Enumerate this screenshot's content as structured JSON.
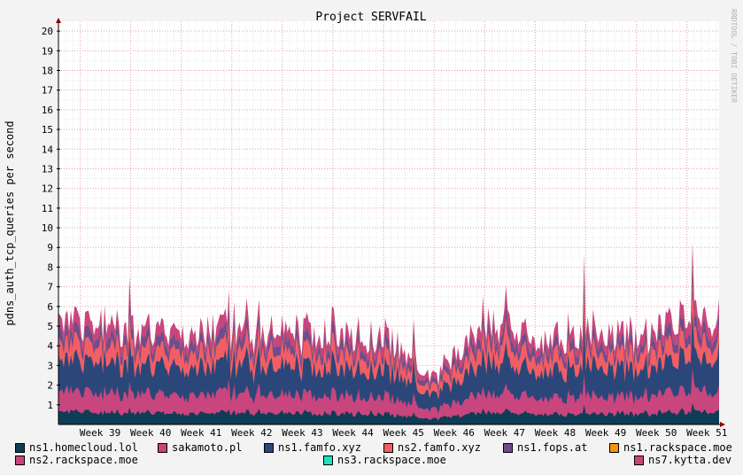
{
  "chart_data": {
    "type": "area",
    "stacked": true,
    "title": "Project SERVFAIL",
    "ylabel": "pdns_auth_tcp_queries per second",
    "watermark": "RRDTOOL / TOBI OETIKER",
    "ylim": [
      0,
      20.5
    ],
    "y_ticks": [
      "1",
      "2",
      "3",
      "4",
      "5",
      "6",
      "7",
      "8",
      "9",
      "10",
      "11",
      "12",
      "13",
      "14",
      "15",
      "16",
      "17",
      "18",
      "19",
      "20"
    ],
    "x_ticks": [
      "Week 39",
      "Week 40",
      "Week 41",
      "Week 42",
      "Week 43",
      "Week 44",
      "Week 45",
      "Week 46",
      "Week 47",
      "Week 48",
      "Week 49",
      "Week 50",
      "Week 51"
    ],
    "grid": true,
    "legend_position": "bottom",
    "approx_total_by_week": {
      "Week 39": 5.5,
      "Week 40": 4.8,
      "Week 41": 4.5,
      "Week 42": 5.0,
      "Week 43": 4.8,
      "Week 44": 4.7,
      "Week 45": 4.6,
      "Week 46": 2.3,
      "Week 47": 5.5,
      "Week 48": 4.3,
      "Week 49": 4.8,
      "Week 50": 4.4,
      "Week 51": 5.5
    },
    "series": [
      {
        "name": "ns1.homecloud.lol",
        "color": "#0f3d56",
        "approx_mean": 0.55
      },
      {
        "name": "sakamoto.pl",
        "color": "#c9457d",
        "approx_mean": 0.9
      },
      {
        "name": "ns1.famfo.xyz",
        "color": "#2b4779",
        "approx_mean": 1.4
      },
      {
        "name": "ns2.famfo.xyz",
        "color": "#f25e64",
        "approx_mean": 0.75
      },
      {
        "name": "ns1.fops.at",
        "color": "#6f4c8e",
        "approx_mean": 0.45
      },
      {
        "name": "ns1.rackspace.moe",
        "color": "#f0950e",
        "approx_mean": 0.0
      },
      {
        "name": "ns2.rackspace.moe",
        "color": "#c9457d",
        "approx_mean": 0.0
      },
      {
        "name": "ns3.rackspace.moe",
        "color": "#1ee3ba",
        "approx_mean": 0.0
      },
      {
        "name": "ns7.kytta.dev",
        "color": "#c9457d",
        "approx_mean": 0.55
      }
    ]
  }
}
